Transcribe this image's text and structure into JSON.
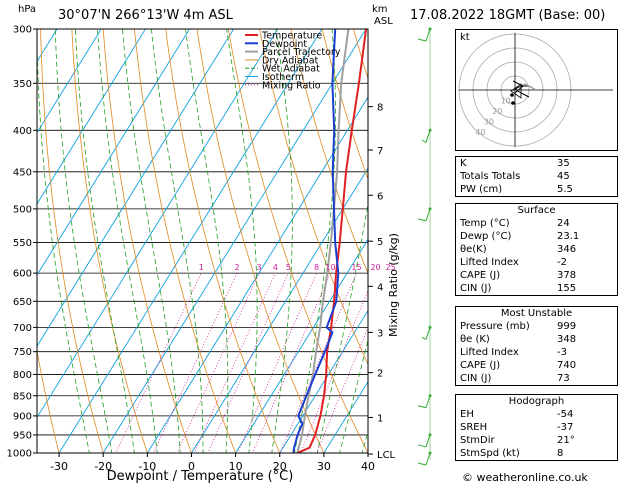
{
  "header": {
    "location": "30°07'N  266°13'W  4m  ASL",
    "datetime": "17.08.2022  18GMT  (Base: 00)",
    "hpa_label": "hPa",
    "km_label": "km",
    "asl_label": "ASL"
  },
  "footer": {
    "credit": "© weatheronline.co.uk"
  },
  "chart_data": {
    "type": "line",
    "title": "",
    "xlabel": "Dewpoint / Temperature (°C)",
    "ylabel": "",
    "mixing_ratio_label": "Mixing Ratio (g/kg)",
    "xlim": [
      -35,
      40
    ],
    "ylim": [
      1000,
      300
    ],
    "x_ticks": [
      -30,
      -20,
      -10,
      0,
      10,
      20,
      30,
      40
    ],
    "pressure_ticks": [
      300,
      350,
      400,
      450,
      500,
      550,
      600,
      650,
      700,
      750,
      800,
      850,
      900,
      950,
      1000
    ],
    "km_ticks": [
      {
        "label": "8",
        "p": 374
      },
      {
        "label": "7",
        "p": 423
      },
      {
        "label": "6",
        "p": 481
      },
      {
        "label": "5",
        "p": 548
      },
      {
        "label": "4",
        "p": 623
      },
      {
        "label": "3",
        "p": 710
      },
      {
        "label": "2",
        "p": 796
      },
      {
        "label": "1",
        "p": 904
      },
      {
        "label": "LCL",
        "p": 1003
      }
    ],
    "mixing_ratio_values": [
      "1",
      "2",
      "3",
      "4",
      "5",
      "8",
      "10",
      "15",
      "20",
      "25"
    ],
    "legend": [
      "Temperature",
      "Dewpoint",
      "Parcel Trajectory",
      "Dry Adiabat",
      "Wet Adiabat",
      "Isotherm",
      "Mixing Ratio"
    ],
    "colors": {
      "temperature": "#e02020",
      "dewpoint": "#1a3fd0",
      "parcel": "#a0a0a0",
      "dry_adiabat": "#e08a20",
      "wet_adiabat": "#20a020",
      "isotherm": "#10a0e0",
      "mixing_ratio": "#d020a0"
    },
    "series": [
      {
        "name": "Temperature",
        "points": [
          [
            24,
            1000
          ],
          [
            26,
            985
          ],
          [
            25.5,
            950
          ],
          [
            24,
            900
          ],
          [
            22,
            850
          ],
          [
            19.5,
            800
          ],
          [
            16.5,
            750
          ],
          [
            14,
            700
          ],
          [
            11,
            650
          ],
          [
            7.5,
            600
          ],
          [
            4,
            550
          ],
          [
            0,
            500
          ],
          [
            -4.5,
            450
          ],
          [
            -9,
            400
          ],
          [
            -14,
            350
          ],
          [
            -20,
            300
          ]
        ]
      },
      {
        "name": "Dewpoint",
        "points": [
          [
            23.1,
            1000
          ],
          [
            22.5,
            985
          ],
          [
            21.5,
            950
          ],
          [
            21,
            920
          ],
          [
            19,
            900
          ],
          [
            18,
            850
          ],
          [
            17,
            800
          ],
          [
            16,
            750
          ],
          [
            15,
            710
          ],
          [
            13,
            700
          ],
          [
            11.5,
            650
          ],
          [
            8,
            600
          ],
          [
            3,
            550
          ],
          [
            -2,
            500
          ],
          [
            -7.5,
            450
          ],
          [
            -13,
            400
          ],
          [
            -20,
            350
          ],
          [
            -27,
            300
          ]
        ]
      },
      {
        "name": "Parcel Trajectory",
        "points": [
          [
            24,
            1000
          ],
          [
            22.5,
            950
          ],
          [
            20.5,
            900
          ],
          [
            18.5,
            850
          ],
          [
            16.5,
            800
          ],
          [
            14,
            750
          ],
          [
            11.5,
            700
          ],
          [
            8.5,
            650
          ],
          [
            5.5,
            600
          ],
          [
            2,
            550
          ],
          [
            -2,
            500
          ],
          [
            -6.5,
            450
          ],
          [
            -12,
            400
          ],
          [
            -18,
            350
          ],
          [
            -24,
            300
          ]
        ]
      }
    ]
  },
  "hodograph": {
    "unit_label": "kt",
    "ring_labels": [
      "10",
      "20",
      "30",
      "40"
    ]
  },
  "wind_barbs": [
    {
      "p": 1000,
      "speed": 10
    },
    {
      "p": 950,
      "speed": 10
    },
    {
      "p": 850,
      "speed": 10
    },
    {
      "p": 700,
      "speed": 5
    },
    {
      "p": 500,
      "speed": 10
    },
    {
      "p": 400,
      "speed": 5
    },
    {
      "p": 300,
      "speed": 10
    }
  ],
  "indices": {
    "general": [
      {
        "label": "K",
        "value": "35"
      },
      {
        "label": "Totals Totals",
        "value": "45"
      },
      {
        "label": "PW (cm)",
        "value": "5.5"
      }
    ],
    "surface": {
      "title": "Surface",
      "rows": [
        {
          "label": "Temp (°C)",
          "value": "24"
        },
        {
          "label": "Dewp (°C)",
          "value": "23.1"
        },
        {
          "label": "θe(K)",
          "value": "346"
        },
        {
          "label": "Lifted Index",
          "value": "-2"
        },
        {
          "label": "CAPE (J)",
          "value": "378"
        },
        {
          "label": "CIN (J)",
          "value": "155"
        }
      ]
    },
    "most_unstable": {
      "title": "Most Unstable",
      "rows": [
        {
          "label": "Pressure (mb)",
          "value": "999"
        },
        {
          "label": "θe (K)",
          "value": "348"
        },
        {
          "label": "Lifted Index",
          "value": "-3"
        },
        {
          "label": "CAPE (J)",
          "value": "740"
        },
        {
          "label": "CIN (J)",
          "value": "73"
        }
      ]
    },
    "hodograph": {
      "title": "Hodograph",
      "rows": [
        {
          "label": "EH",
          "value": "-54"
        },
        {
          "label": "SREH",
          "value": "-37"
        },
        {
          "label": "StmDir",
          "value": "21°"
        },
        {
          "label": "StmSpd (kt)",
          "value": "8"
        }
      ]
    }
  }
}
